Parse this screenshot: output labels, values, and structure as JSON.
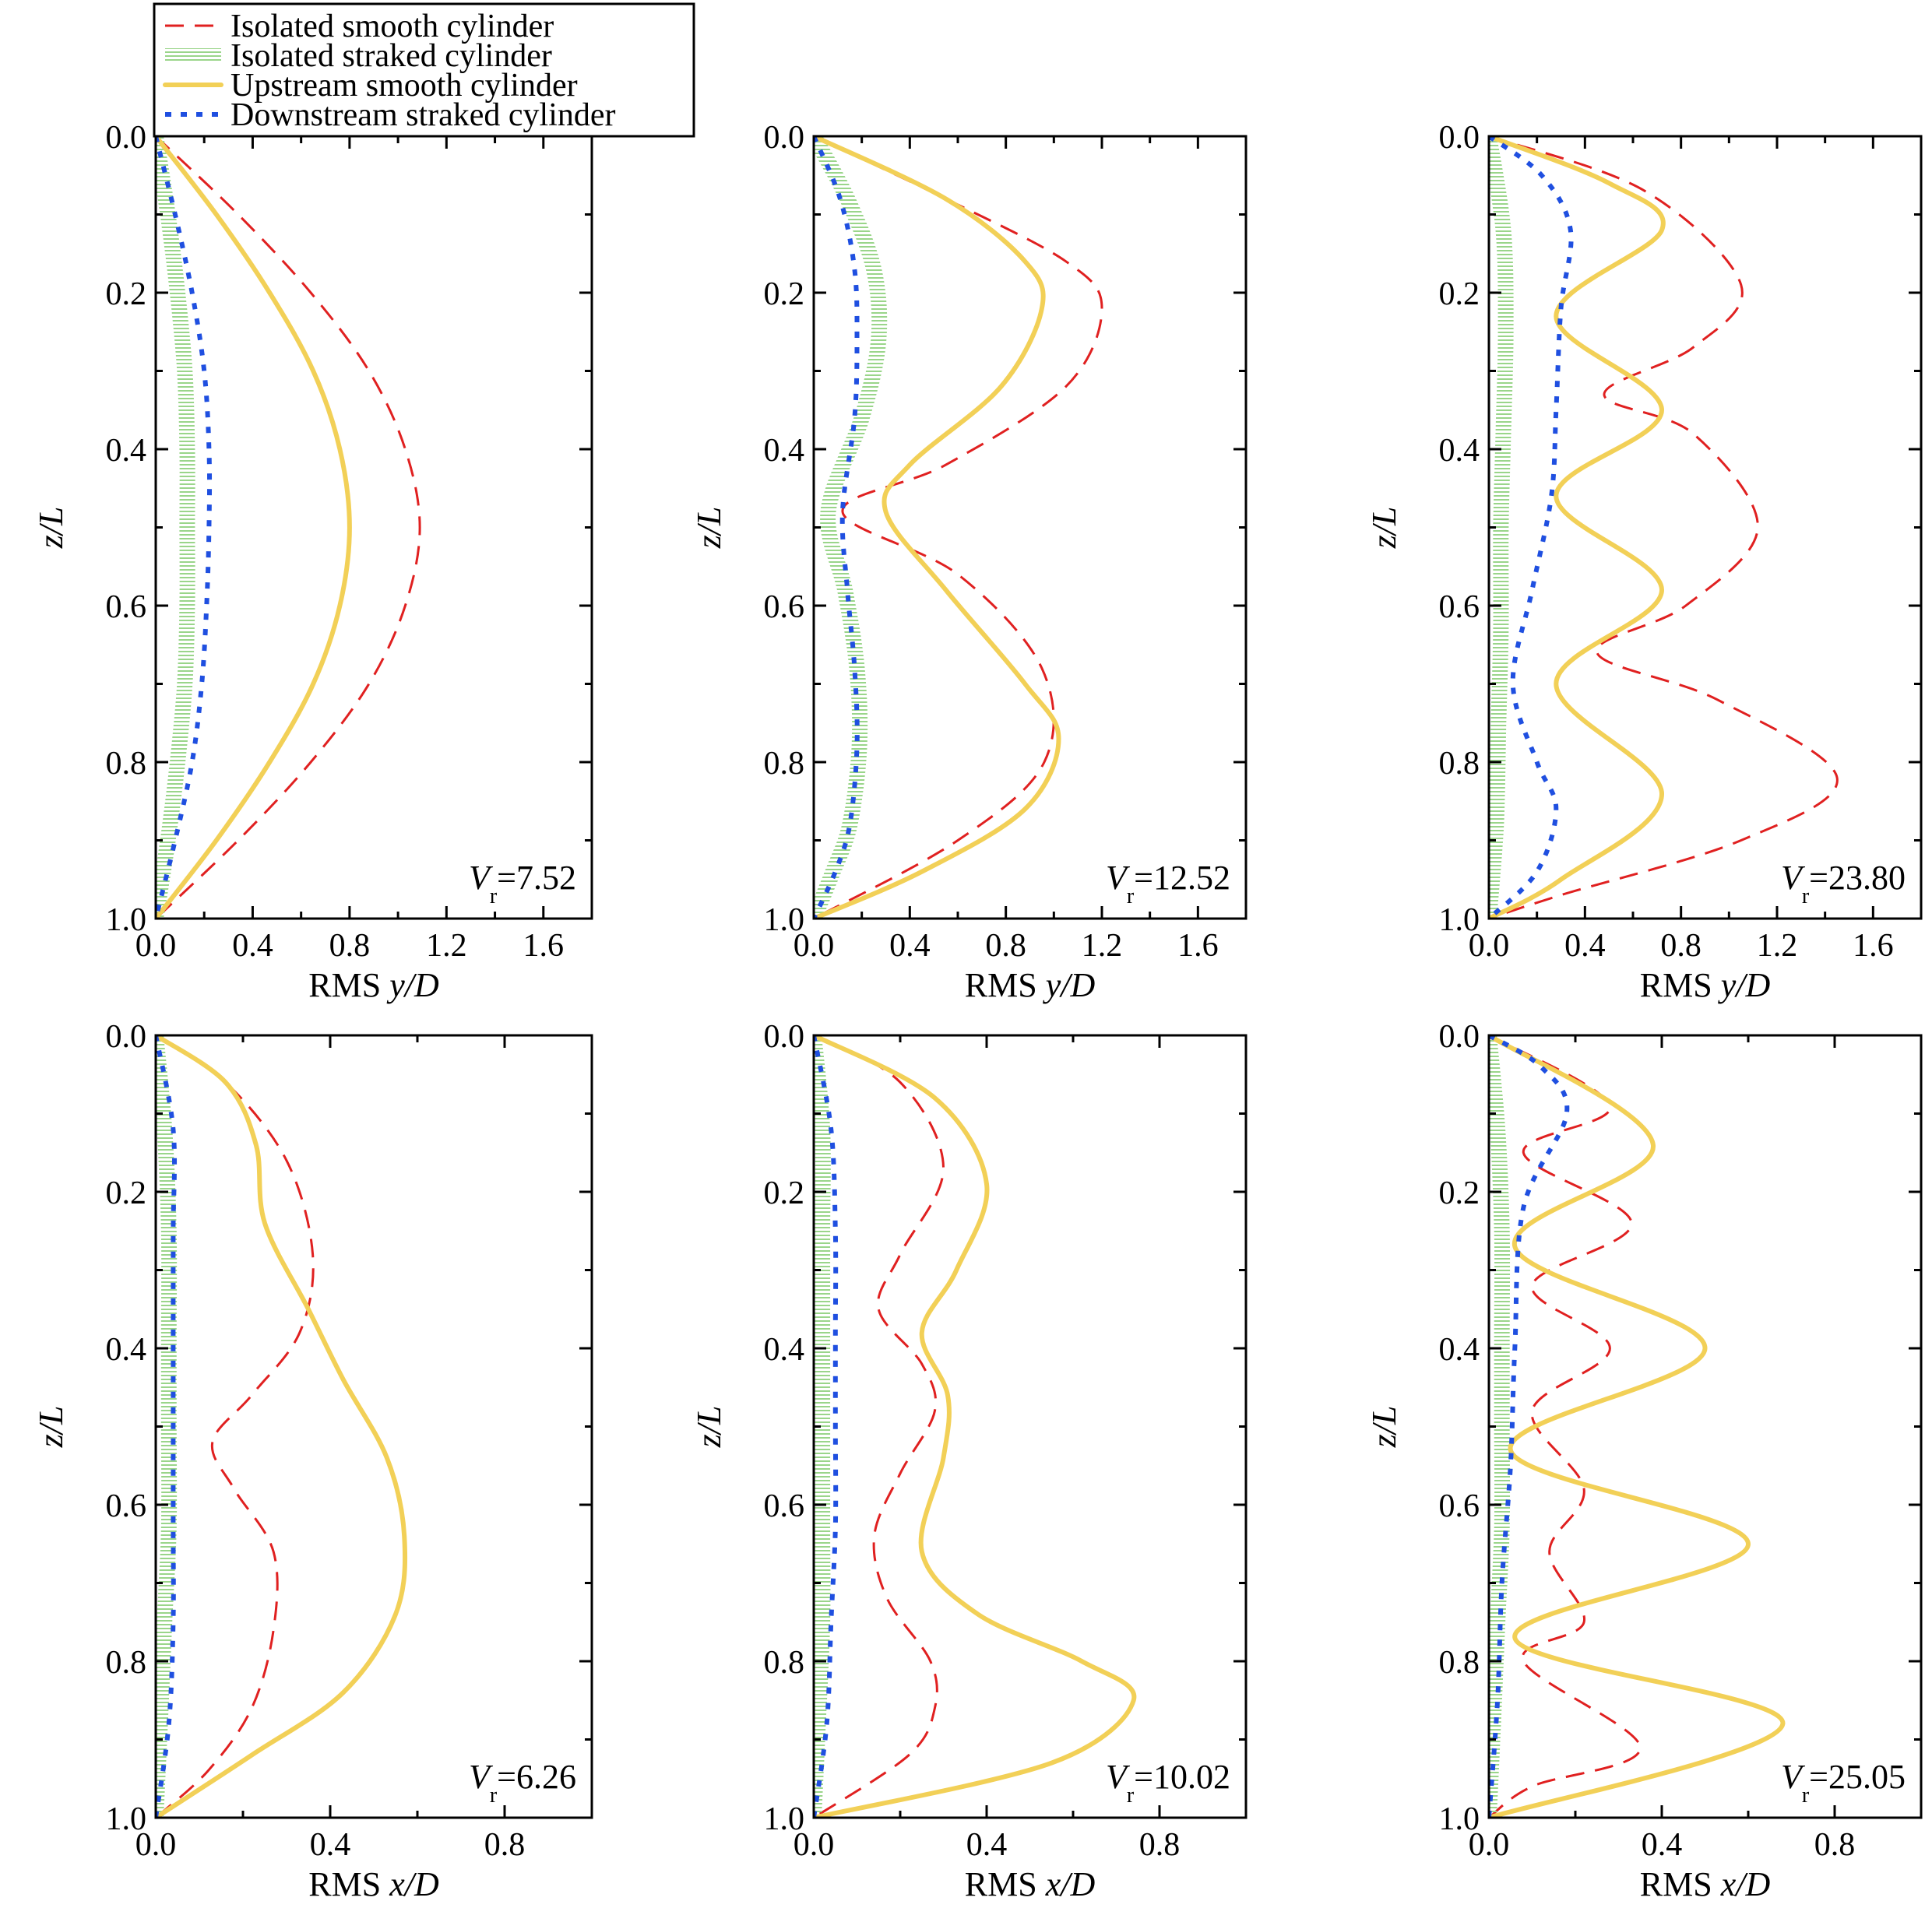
{
  "legend": {
    "entries": [
      {
        "label": "Isolated smooth cylinder",
        "color": "#e02020",
        "style": "dashed"
      },
      {
        "label": "Isolated straked cylinder",
        "color": "#9ad58a",
        "style": "hatched"
      },
      {
        "label": "Upstream smooth cylinder",
        "color": "#f2d057",
        "style": "solid"
      },
      {
        "label": "Downstream straked cylinder",
        "color": "#1f4fe0",
        "style": "dotted"
      }
    ]
  },
  "chart_data": [
    {
      "type": "line",
      "panel": "top-left",
      "ylabel": "z/L",
      "xlabel_prefix": "RMS ",
      "xlabel_var": "y/D",
      "annotation": {
        "var": "V",
        "sub": "r",
        "value": "=7.52"
      },
      "xlim": [
        0,
        1.8
      ],
      "ylim": [
        1.0,
        0.0
      ],
      "y_inverted": true,
      "xticks": [
        0.0,
        0.4,
        0.8,
        1.2,
        1.6
      ],
      "xtick_labels": [
        "0.0",
        "0.4",
        "0.8",
        "1.2",
        "1.6"
      ],
      "yticks": [
        0.0,
        0.2,
        0.4,
        0.6,
        0.8,
        1.0
      ],
      "ytick_labels": [
        "0.0",
        "0.2",
        "0.4",
        "0.6",
        "0.8",
        "1.0"
      ],
      "series": [
        {
          "name": "Isolated smooth cylinder",
          "x": [
            0,
            0.34,
            0.64,
            0.88,
            1.03,
            1.09,
            1.03,
            0.88,
            0.64,
            0.34,
            0
          ],
          "y": [
            0,
            0.1,
            0.2,
            0.3,
            0.4,
            0.5,
            0.6,
            0.7,
            0.8,
            0.9,
            1
          ]
        },
        {
          "name": "Isolated straked cylinder",
          "x": [
            0,
            0.05,
            0.09,
            0.12,
            0.13,
            0.13,
            0.13,
            0.12,
            0.09,
            0.05,
            0
          ],
          "y": [
            0,
            0.1,
            0.2,
            0.3,
            0.4,
            0.5,
            0.6,
            0.7,
            0.8,
            0.9,
            1
          ]
        },
        {
          "name": "Upstream smooth cylinder",
          "x": [
            0,
            0.25,
            0.47,
            0.65,
            0.76,
            0.8,
            0.76,
            0.65,
            0.47,
            0.25,
            0
          ],
          "y": [
            0,
            0.1,
            0.2,
            0.3,
            0.4,
            0.5,
            0.6,
            0.7,
            0.8,
            0.9,
            1
          ]
        },
        {
          "name": "Downstream straked cylinder",
          "x": [
            0,
            0.08,
            0.15,
            0.2,
            0.22,
            0.22,
            0.21,
            0.19,
            0.15,
            0.08,
            0
          ],
          "y": [
            0,
            0.1,
            0.2,
            0.3,
            0.4,
            0.5,
            0.6,
            0.7,
            0.8,
            0.9,
            1
          ]
        }
      ]
    },
    {
      "type": "line",
      "panel": "top-middle",
      "ylabel": "z/L",
      "xlabel_prefix": "RMS ",
      "xlabel_var": "y/D",
      "annotation": {
        "var": "V",
        "sub": "r",
        "value": "=12.52"
      },
      "xlim": [
        0,
        1.8
      ],
      "ylim": [
        1.0,
        0.0
      ],
      "y_inverted": true,
      "xticks": [
        0.0,
        0.4,
        0.8,
        1.2,
        1.6
      ],
      "xtick_labels": [
        "0.0",
        "0.4",
        "0.8",
        "1.2",
        "1.6"
      ],
      "yticks": [
        0.0,
        0.2,
        0.4,
        0.6,
        0.8,
        1.0
      ],
      "ytick_labels": [
        "0.0",
        "0.2",
        "0.4",
        "0.6",
        "0.8",
        "1.0"
      ],
      "series": [
        {
          "name": "Isolated smooth cylinder",
          "x": [
            0,
            0.55,
            1.05,
            1.2,
            1.05,
            0.55,
            0.12,
            0.6,
            0.95,
            0.96,
            0.6,
            0
          ],
          "y": [
            0,
            0.08,
            0.16,
            0.22,
            0.32,
            0.42,
            0.48,
            0.56,
            0.68,
            0.8,
            0.9,
            1
          ]
        },
        {
          "name": "Isolated straked cylinder",
          "x": [
            0,
            0.14,
            0.25,
            0.27,
            0.2,
            0.06,
            0.13,
            0.18,
            0.19,
            0.15,
            0.08,
            0
          ],
          "y": [
            0,
            0.08,
            0.17,
            0.26,
            0.36,
            0.48,
            0.58,
            0.68,
            0.78,
            0.88,
            0.94,
            1
          ]
        },
        {
          "name": "Upstream smooth cylinder",
          "x": [
            0,
            0.55,
            0.88,
            0.95,
            0.78,
            0.4,
            0.3,
            0.55,
            0.88,
            1.02,
            0.88,
            0.45,
            0
          ],
          "y": [
            0,
            0.08,
            0.16,
            0.22,
            0.32,
            0.42,
            0.48,
            0.58,
            0.7,
            0.77,
            0.86,
            0.94,
            1
          ]
        },
        {
          "name": "Downstream straked cylinder",
          "x": [
            0,
            0.11,
            0.17,
            0.18,
            0.17,
            0.12,
            0.14,
            0.17,
            0.18,
            0.15,
            0.09,
            0
          ],
          "y": [
            0,
            0.08,
            0.17,
            0.26,
            0.36,
            0.48,
            0.58,
            0.68,
            0.78,
            0.88,
            0.94,
            1
          ]
        }
      ]
    },
    {
      "type": "line",
      "panel": "top-right",
      "ylabel": "z/L",
      "xlabel_prefix": "RMS ",
      "xlabel_var": "y/D",
      "annotation": {
        "var": "V",
        "sub": "r",
        "value": "=23.80"
      },
      "xlim": [
        0,
        1.8
      ],
      "ylim": [
        1.0,
        0.0
      ],
      "y_inverted": true,
      "xticks": [
        0.0,
        0.4,
        0.8,
        1.2,
        1.6
      ],
      "xtick_labels": [
        "0.0",
        "0.4",
        "0.8",
        "1.2",
        "1.6"
      ],
      "yticks": [
        0.0,
        0.2,
        0.4,
        0.6,
        0.8,
        1.0
      ],
      "ytick_labels": [
        "0.0",
        "0.2",
        "0.4",
        "0.6",
        "0.8",
        "1.0"
      ],
      "series": [
        {
          "name": "Isolated smooth cylinder",
          "x": [
            0,
            0.65,
            1.05,
            0.85,
            0.48,
            0.85,
            1.12,
            0.82,
            0.45,
            0.95,
            1.45,
            1.05,
            0.3,
            0
          ],
          "y": [
            0,
            0.07,
            0.19,
            0.27,
            0.33,
            0.38,
            0.5,
            0.6,
            0.66,
            0.72,
            0.82,
            0.9,
            0.97,
            1
          ]
        },
        {
          "name": "Isolated straked cylinder",
          "x": [
            0,
            0.06,
            0.07,
            0.06,
            0.05,
            0.05,
            0.04,
            0.03,
            0
          ],
          "y": [
            0,
            0.12,
            0.25,
            0.38,
            0.5,
            0.63,
            0.75,
            0.88,
            1
          ]
        },
        {
          "name": "Upstream smooth cylinder",
          "x": [
            0,
            0.5,
            0.72,
            0.28,
            0.72,
            0.28,
            0.72,
            0.28,
            0.72,
            0.3,
            0
          ],
          "y": [
            0,
            0.06,
            0.12,
            0.23,
            0.35,
            0.46,
            0.58,
            0.7,
            0.84,
            0.95,
            1
          ]
        },
        {
          "name": "Downstream straked cylinder",
          "x": [
            0,
            0.22,
            0.34,
            0.3,
            0.28,
            0.26,
            0.18,
            0.1,
            0.2,
            0.28,
            0.2,
            0
          ],
          "y": [
            0,
            0.05,
            0.12,
            0.22,
            0.35,
            0.46,
            0.58,
            0.7,
            0.8,
            0.86,
            0.94,
            1
          ]
        }
      ]
    },
    {
      "type": "line",
      "panel": "bottom-left",
      "ylabel": "z/L",
      "xlabel_prefix": "RMS ",
      "xlabel_var": "x/D",
      "annotation": {
        "var": "V",
        "sub": "r",
        "value": "=6.26"
      },
      "xlim": [
        0,
        1.0
      ],
      "ylim": [
        1.0,
        0.0
      ],
      "y_inverted": true,
      "xticks": [
        0.0,
        0.4,
        0.8
      ],
      "xtick_labels": [
        "0.0",
        "0.4",
        "0.8"
      ],
      "yticks": [
        0.0,
        0.2,
        0.4,
        0.6,
        0.8,
        1.0
      ],
      "ytick_labels": [
        "0.0",
        "0.2",
        "0.4",
        "0.6",
        "0.8",
        "1.0"
      ],
      "series": [
        {
          "name": "Isolated smooth cylinder",
          "x": [
            0,
            0.16,
            0.3,
            0.36,
            0.33,
            0.22,
            0.13,
            0.18,
            0.27,
            0.27,
            0.22,
            0.12,
            0
          ],
          "y": [
            0,
            0.06,
            0.16,
            0.28,
            0.38,
            0.46,
            0.52,
            0.58,
            0.66,
            0.76,
            0.86,
            0.94,
            1
          ]
        },
        {
          "name": "Isolated straked cylinder",
          "x": [
            0,
            0.02,
            0.03,
            0.03,
            0.03,
            0.03,
            0.02,
            0.01,
            0
          ],
          "y": [
            0,
            0.12,
            0.25,
            0.38,
            0.5,
            0.63,
            0.75,
            0.88,
            1
          ]
        },
        {
          "name": "Upstream smooth cylinder",
          "x": [
            0,
            0.16,
            0.23,
            0.25,
            0.35,
            0.43,
            0.53,
            0.57,
            0.55,
            0.43,
            0.22,
            0
          ],
          "y": [
            0,
            0.06,
            0.14,
            0.24,
            0.35,
            0.44,
            0.54,
            0.64,
            0.74,
            0.84,
            0.92,
            1
          ]
        },
        {
          "name": "Downstream straked cylinder",
          "x": [
            0,
            0.04,
            0.04,
            0.04,
            0.04,
            0.04,
            0.04,
            0.03,
            0
          ],
          "y": [
            0,
            0.12,
            0.25,
            0.38,
            0.5,
            0.63,
            0.75,
            0.88,
            1
          ]
        }
      ]
    },
    {
      "type": "line",
      "panel": "bottom-middle",
      "ylabel": "z/L",
      "xlabel_prefix": "RMS ",
      "xlabel_var": "x/D",
      "annotation": {
        "var": "V",
        "sub": "r",
        "value": "=10.02"
      },
      "xlim": [
        0,
        1.0
      ],
      "ylim": [
        1.0,
        0.0
      ],
      "y_inverted": true,
      "xticks": [
        0.0,
        0.4,
        0.8
      ],
      "xtick_labels": [
        "0.0",
        "0.4",
        "0.8"
      ],
      "yticks": [
        0.0,
        0.2,
        0.4,
        0.6,
        0.8,
        1.0
      ],
      "ytick_labels": [
        "0.0",
        "0.2",
        "0.4",
        "0.6",
        "0.8",
        "1.0"
      ],
      "series": [
        {
          "name": "Isolated smooth cylinder",
          "x": [
            0,
            0.2,
            0.3,
            0.2,
            0.15,
            0.25,
            0.28,
            0.2,
            0.14,
            0.17,
            0.27,
            0.28,
            0.22,
            0
          ],
          "y": [
            0,
            0.06,
            0.17,
            0.28,
            0.35,
            0.42,
            0.48,
            0.56,
            0.64,
            0.72,
            0.8,
            0.86,
            0.92,
            1
          ]
        },
        {
          "name": "Isolated straked cylinder",
          "x": [
            0,
            0.02,
            0.02,
            0.02,
            0.02,
            0.02,
            0.02,
            0.01,
            0
          ],
          "y": [
            0,
            0.12,
            0.25,
            0.38,
            0.5,
            0.63,
            0.75,
            0.88,
            1
          ]
        },
        {
          "name": "Upstream smooth cylinder",
          "x": [
            0,
            0.28,
            0.4,
            0.33,
            0.25,
            0.31,
            0.3,
            0.25,
            0.38,
            0.62,
            0.74,
            0.55,
            0
          ],
          "y": [
            0,
            0.08,
            0.19,
            0.3,
            0.38,
            0.46,
            0.54,
            0.66,
            0.74,
            0.8,
            0.85,
            0.93,
            1
          ]
        },
        {
          "name": "Downstream straked cylinder",
          "x": [
            0,
            0.04,
            0.05,
            0.05,
            0.05,
            0.05,
            0.04,
            0.03,
            0
          ],
          "y": [
            0,
            0.12,
            0.25,
            0.38,
            0.5,
            0.63,
            0.75,
            0.88,
            1
          ]
        }
      ]
    },
    {
      "type": "line",
      "panel": "bottom-right",
      "ylabel": "z/L",
      "xlabel_prefix": "RMS ",
      "xlabel_var": "x/D",
      "annotation": {
        "var": "V",
        "sub": "r",
        "value": "=25.05"
      },
      "xlim": [
        0,
        1.0
      ],
      "ylim": [
        1.0,
        0.0
      ],
      "y_inverted": true,
      "xticks": [
        0.0,
        0.4,
        0.8
      ],
      "xtick_labels": [
        "0.0",
        "0.4",
        "0.8"
      ],
      "yticks": [
        0.0,
        0.2,
        0.4,
        0.6,
        0.8,
        1.0
      ],
      "ytick_labels": [
        "0.0",
        "0.2",
        "0.4",
        "0.6",
        "0.8",
        "1.0"
      ],
      "series": [
        {
          "name": "Isolated smooth cylinder",
          "x": [
            0,
            0.28,
            0.08,
            0.33,
            0.1,
            0.28,
            0.1,
            0.22,
            0.14,
            0.22,
            0.08,
            0.35,
            0.1,
            0
          ],
          "y": [
            0,
            0.09,
            0.15,
            0.24,
            0.32,
            0.4,
            0.48,
            0.58,
            0.66,
            0.75,
            0.8,
            0.91,
            0.96,
            1
          ]
        },
        {
          "name": "Isolated straked cylinder",
          "x": [
            0,
            0.02,
            0.03,
            0.03,
            0.03,
            0.03,
            0.02,
            0.01,
            0
          ],
          "y": [
            0,
            0.12,
            0.25,
            0.38,
            0.5,
            0.63,
            0.75,
            0.88,
            1
          ]
        },
        {
          "name": "Upstream smooth cylinder",
          "x": [
            0,
            0.38,
            0.06,
            0.5,
            0.05,
            0.6,
            0.06,
            0.68,
            0
          ],
          "y": [
            0,
            0.14,
            0.27,
            0.4,
            0.53,
            0.65,
            0.77,
            0.88,
            1
          ]
        },
        {
          "name": "Downstream straked cylinder",
          "x": [
            0,
            0.12,
            0.18,
            0.08,
            0.06,
            0.05,
            0.03,
            0.02,
            0
          ],
          "y": [
            0,
            0.04,
            0.1,
            0.22,
            0.4,
            0.55,
            0.7,
            0.85,
            1
          ]
        }
      ]
    }
  ]
}
